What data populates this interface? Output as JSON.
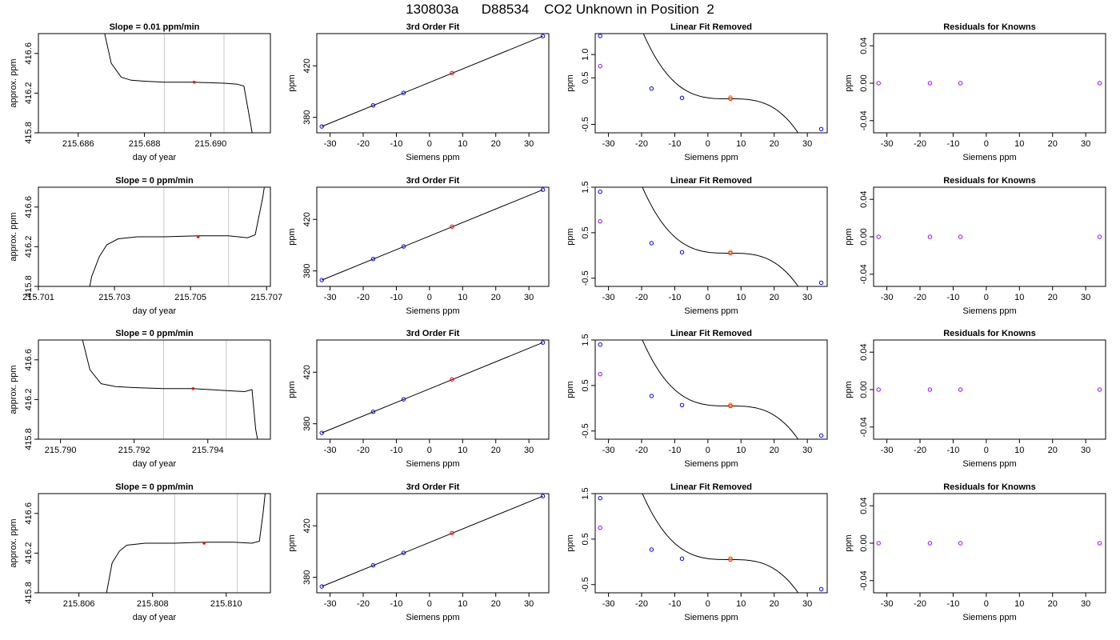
{
  "page_title": "130803a      D88534    CO2 Unknown in Position  2",
  "labels": {
    "fit_title": "3rd Order Fit",
    "linfit_title": "Linear Fit Removed",
    "resid_title": "Residuals for Knowns",
    "ts_xlabel": "day of year",
    "ts_ylabel": "approx. ppm",
    "siemens_xlabel": "Siemens ppm",
    "ppm_ylabel": "ppm"
  },
  "colors": {
    "known": "#0000ff",
    "unknown": "#ff0000",
    "orange": "#ff8c00",
    "purple": "#a000ff",
    "line": "#000000",
    "vline": "#c8c8c8"
  },
  "chart_data": [
    {
      "type": "line",
      "title": "Slope =  0.01  ppm/min",
      "xlabel": "day of year",
      "ylabel": "approx. ppm",
      "xlim": [
        215.6848,
        215.6918
      ],
      "ylim": [
        415.8,
        416.8
      ],
      "xticks": [
        215.686,
        215.688,
        215.69
      ],
      "xtick_labels": [
        "215.686",
        "215.688",
        "215.690"
      ],
      "yticks": [
        415.8,
        416.2,
        416.6
      ],
      "ytick_labels": [
        "415.8",
        "416.2",
        "416.6"
      ],
      "trace": [
        [
          215.6867,
          416.95
        ],
        [
          215.687,
          416.5
        ],
        [
          215.6873,
          416.36
        ],
        [
          215.6876,
          416.33
        ],
        [
          215.688,
          416.32
        ],
        [
          215.6886,
          416.31
        ],
        [
          215.6895,
          416.31
        ],
        [
          215.6904,
          416.3
        ],
        [
          215.6908,
          416.29
        ],
        [
          215.691,
          416.27
        ],
        [
          215.6912,
          415.9
        ],
        [
          215.6913,
          415.7
        ]
      ],
      "vlines": [
        215.6886,
        215.6904
      ],
      "marker": [
        215.6895,
        416.31
      ]
    },
    {
      "type": "scatter",
      "title": "3rd Order Fit",
      "xlabel": "Siemens ppm",
      "ylabel": "ppm",
      "xlim": [
        -34,
        36
      ],
      "ylim": [
        368,
        445
      ],
      "xticks": [
        -30,
        -20,
        -10,
        0,
        10,
        20,
        30
      ],
      "xtick_labels": [
        "-30",
        "-20",
        "-10",
        "0",
        "10",
        "20",
        "30"
      ],
      "yticks": [
        380,
        420
      ],
      "ytick_labels": [
        "380",
        "420"
      ],
      "known_points": [
        [
          -32.5,
          372.9
        ],
        [
          -17,
          389.3
        ],
        [
          -7.8,
          399.0
        ],
        [
          34.2,
          443.0
        ]
      ],
      "unknown_points": [
        [
          6.8,
          414.4
        ]
      ]
    },
    {
      "type": "scatter",
      "title": "Linear Fit Removed",
      "xlabel": "Siemens ppm",
      "ylabel": "ppm",
      "xlim": [
        -34,
        36
      ],
      "ylim": [
        -0.68,
        1.45
      ],
      "xticks": [
        -30,
        -20,
        -10,
        0,
        10,
        20,
        30
      ],
      "xtick_labels": [
        "-30",
        "-20",
        "-10",
        "0",
        "10",
        "20",
        "30"
      ],
      "yticks": [
        -0.5,
        0.5,
        1.0
      ],
      "ytick_labels": [
        "-0.5",
        "0.5",
        "1.0"
      ],
      "known_points": [
        [
          -32.5,
          1.4
        ],
        [
          -17,
          0.27
        ],
        [
          -7.8,
          0.07
        ],
        [
          34.2,
          -0.6
        ]
      ],
      "unknown_points": [
        [
          6.8,
          0.05
        ]
      ],
      "orange_points": [
        [
          6.8,
          0.08
        ]
      ],
      "purple_points": [
        [
          -32.5,
          0.75
        ]
      ],
      "curve": {
        "x0": 6.4,
        "k": 8.1e-05,
        "c": 0.05
      }
    },
    {
      "type": "scatter",
      "title": "Residuals for Knowns",
      "xlabel": "Siemens ppm",
      "ylabel": "ppm",
      "xlim": [
        -34,
        36
      ],
      "ylim": [
        -0.053,
        0.053
      ],
      "xticks": [
        -30,
        -20,
        -10,
        0,
        10,
        20,
        30
      ],
      "xtick_labels": [
        "-30",
        "-20",
        "-10",
        "0",
        "10",
        "20",
        "30"
      ],
      "yticks": [
        -0.04,
        0.0,
        0.04
      ],
      "ytick_labels": [
        "-0.04",
        "0.00",
        "0.04"
      ],
      "resid_points": [
        [
          -32.5,
          0
        ],
        [
          -17,
          0
        ],
        [
          -7.8,
          0
        ],
        [
          34.2,
          0
        ]
      ]
    },
    {
      "type": "line",
      "title": "Slope =  0  ppm/min",
      "xlabel": "day of year",
      "ylabel": "approx. ppm",
      "xlim": [
        215.701,
        215.7071
      ],
      "ylim": [
        415.8,
        416.8
      ],
      "xticks": [
        215.701,
        215.703,
        215.705,
        215.707
      ],
      "xtick_labels": [
        "215.701",
        "215.703",
        "215.705",
        "215.707"
      ],
      "yticks": [
        415.8,
        416.2,
        416.6
      ],
      "ytick_labels": [
        "415.8",
        "416.2",
        "416.6"
      ],
      "trace": [
        [
          215.7023,
          415.7
        ],
        [
          215.7024,
          415.9
        ],
        [
          215.7026,
          416.1
        ],
        [
          215.7028,
          416.22
        ],
        [
          215.7031,
          416.28
        ],
        [
          215.7036,
          416.3
        ],
        [
          215.7043,
          416.3
        ],
        [
          215.7052,
          416.31
        ],
        [
          215.706,
          416.31
        ],
        [
          215.7065,
          416.29
        ],
        [
          215.7067,
          416.32
        ],
        [
          215.7069,
          416.7
        ],
        [
          215.707,
          416.95
        ]
      ],
      "vlines": [
        215.7043,
        215.706
      ],
      "marker": [
        215.7052,
        416.3
      ]
    },
    {
      "type": "scatter",
      "title": "3rd Order Fit",
      "xlabel": "Siemens ppm",
      "ylabel": "ppm",
      "xlim": [
        -34,
        36
      ],
      "ylim": [
        368,
        445
      ],
      "xticks": [
        -30,
        -20,
        -10,
        0,
        10,
        20,
        30
      ],
      "xtick_labels": [
        "-30",
        "-20",
        "-10",
        "0",
        "10",
        "20",
        "30"
      ],
      "yticks": [
        380,
        420
      ],
      "ytick_labels": [
        "380",
        "420"
      ],
      "known_points": [
        [
          -32.5,
          372.9
        ],
        [
          -17,
          389.3
        ],
        [
          -7.8,
          399.0
        ],
        [
          34.2,
          443.0
        ]
      ],
      "unknown_points": [
        [
          6.8,
          414.4
        ]
      ]
    },
    {
      "type": "scatter",
      "title": "Linear Fit Removed",
      "xlabel": "Siemens ppm",
      "ylabel": "ppm",
      "xlim": [
        -34,
        36
      ],
      "ylim": [
        -0.68,
        1.5
      ],
      "xticks": [
        -30,
        -20,
        -10,
        0,
        10,
        20,
        30
      ],
      "xtick_labels": [
        "-30",
        "-20",
        "-10",
        "0",
        "10",
        "20",
        "30"
      ],
      "yticks": [
        -0.5,
        0.5,
        1.5
      ],
      "ytick_labels": [
        "-0.5",
        "0.5",
        "1.5"
      ],
      "known_points": [
        [
          -32.5,
          1.4
        ],
        [
          -17,
          0.27
        ],
        [
          -7.8,
          0.07
        ],
        [
          34.2,
          -0.6
        ]
      ],
      "unknown_points": [
        [
          6.8,
          0.05
        ]
      ],
      "orange_points": [
        [
          6.8,
          0.08
        ]
      ],
      "purple_points": [
        [
          -32.5,
          0.75
        ]
      ],
      "curve": {
        "x0": 6.4,
        "k": 8.1e-05,
        "c": 0.05
      }
    },
    {
      "type": "scatter",
      "title": "Residuals for Knowns",
      "xlabel": "Siemens ppm",
      "ylabel": "ppm",
      "xlim": [
        -34,
        36
      ],
      "ylim": [
        -0.053,
        0.053
      ],
      "xticks": [
        -30,
        -20,
        -10,
        0,
        10,
        20,
        30
      ],
      "xtick_labels": [
        "-30",
        "-20",
        "-10",
        "0",
        "10",
        "20",
        "30"
      ],
      "yticks": [
        -0.04,
        0.0,
        0.04
      ],
      "ytick_labels": [
        "-0.04",
        "0.00",
        "0.04"
      ],
      "resid_points": [
        [
          -32.5,
          0
        ],
        [
          -17,
          0
        ],
        [
          -7.8,
          0
        ],
        [
          34.2,
          0
        ]
      ]
    },
    {
      "type": "line",
      "title": "Slope =  0  ppm/min",
      "xlabel": "day of year",
      "ylabel": "approx. ppm",
      "xlim": [
        215.7894,
        215.7957
      ],
      "ylim": [
        415.8,
        416.8
      ],
      "xticks": [
        215.79,
        215.792,
        215.794
      ],
      "xtick_labels": [
        "215.790",
        "215.792",
        "215.794"
      ],
      "yticks": [
        415.8,
        416.2,
        416.6
      ],
      "ytick_labels": [
        "415.8",
        "416.2",
        "416.6"
      ],
      "trace": [
        [
          215.7905,
          416.95
        ],
        [
          215.7908,
          416.5
        ],
        [
          215.7911,
          416.36
        ],
        [
          215.7915,
          416.33
        ],
        [
          215.792,
          416.32
        ],
        [
          215.7928,
          416.31
        ],
        [
          215.7936,
          416.31
        ],
        [
          215.7945,
          416.29
        ],
        [
          215.795,
          416.28
        ],
        [
          215.7952,
          416.3
        ],
        [
          215.7953,
          415.9
        ],
        [
          215.7954,
          415.7
        ]
      ],
      "vlines": [
        215.7928,
        215.7945
      ],
      "marker": [
        215.7936,
        416.31
      ]
    },
    {
      "type": "scatter",
      "title": "3rd Order Fit",
      "xlabel": "Siemens ppm",
      "ylabel": "ppm",
      "xlim": [
        -34,
        36
      ],
      "ylim": [
        368,
        445
      ],
      "xticks": [
        -30,
        -20,
        -10,
        0,
        10,
        20,
        30
      ],
      "xtick_labels": [
        "-30",
        "-20",
        "-10",
        "0",
        "10",
        "20",
        "30"
      ],
      "yticks": [
        380,
        420
      ],
      "ytick_labels": [
        "380",
        "420"
      ],
      "known_points": [
        [
          -32.5,
          372.9
        ],
        [
          -17,
          389.3
        ],
        [
          -7.8,
          399.0
        ],
        [
          34.2,
          443.0
        ]
      ],
      "unknown_points": [
        [
          6.8,
          414.4
        ]
      ]
    },
    {
      "type": "scatter",
      "title": "Linear Fit Removed",
      "xlabel": "Siemens ppm",
      "ylabel": "ppm",
      "xlim": [
        -34,
        36
      ],
      "ylim": [
        -0.68,
        1.5
      ],
      "xticks": [
        -30,
        -20,
        -10,
        0,
        10,
        20,
        30
      ],
      "xtick_labels": [
        "-30",
        "-20",
        "-10",
        "0",
        "10",
        "20",
        "30"
      ],
      "yticks": [
        -0.5,
        0.5,
        1.5
      ],
      "ytick_labels": [
        "-0.5",
        "0.5",
        "1.5"
      ],
      "known_points": [
        [
          -32.5,
          1.4
        ],
        [
          -17,
          0.27
        ],
        [
          -7.8,
          0.07
        ],
        [
          34.2,
          -0.6
        ]
      ],
      "unknown_points": [
        [
          6.8,
          0.05
        ]
      ],
      "orange_points": [
        [
          6.8,
          0.08
        ]
      ],
      "purple_points": [
        [
          -32.5,
          0.75
        ]
      ],
      "curve": {
        "x0": 6.4,
        "k": 8.1e-05,
        "c": 0.05
      }
    },
    {
      "type": "scatter",
      "title": "Residuals for Knowns",
      "xlabel": "Siemens ppm",
      "ylabel": "ppm",
      "xlim": [
        -34,
        36
      ],
      "ylim": [
        -0.053,
        0.053
      ],
      "xticks": [
        -30,
        -20,
        -10,
        0,
        10,
        20,
        30
      ],
      "xtick_labels": [
        "-30",
        "-20",
        "-10",
        "0",
        "10",
        "20",
        "30"
      ],
      "yticks": [
        -0.04,
        0.0,
        0.04
      ],
      "ytick_labels": [
        "-0.04",
        "0.00",
        "0.04"
      ],
      "resid_points": [
        [
          -32.5,
          0
        ],
        [
          -17,
          0
        ],
        [
          -7.8,
          0
        ],
        [
          34.2,
          0
        ]
      ]
    },
    {
      "type": "line",
      "title": "Slope =  0  ppm/min",
      "xlabel": "day of year",
      "ylabel": "approx. ppm",
      "xlim": [
        215.8049,
        215.8112
      ],
      "ylim": [
        415.8,
        416.8
      ],
      "xticks": [
        215.806,
        215.808,
        215.81
      ],
      "xtick_labels": [
        "215.806",
        "215.808",
        "215.810"
      ],
      "yticks": [
        415.8,
        416.2,
        416.6
      ],
      "ytick_labels": [
        "415.8",
        "416.2",
        "416.6"
      ],
      "trace": [
        [
          215.8067,
          415.7
        ],
        [
          215.8068,
          415.9
        ],
        [
          215.8069,
          416.1
        ],
        [
          215.8071,
          416.22
        ],
        [
          215.8073,
          416.28
        ],
        [
          215.8078,
          416.3
        ],
        [
          215.8086,
          416.3
        ],
        [
          215.8094,
          416.31
        ],
        [
          215.8102,
          416.31
        ],
        [
          215.8107,
          416.3
        ],
        [
          215.8109,
          416.32
        ],
        [
          215.811,
          416.6
        ],
        [
          215.8111,
          416.95
        ]
      ],
      "vlines": [
        215.8086,
        215.8103
      ],
      "marker": [
        215.8094,
        416.3
      ]
    },
    {
      "type": "scatter",
      "title": "3rd Order Fit",
      "xlabel": "Siemens ppm",
      "ylabel": "ppm",
      "xlim": [
        -34,
        36
      ],
      "ylim": [
        368,
        445
      ],
      "xticks": [
        -30,
        -20,
        -10,
        0,
        10,
        20,
        30
      ],
      "xtick_labels": [
        "-30",
        "-20",
        "-10",
        "0",
        "10",
        "20",
        "30"
      ],
      "yticks": [
        380,
        420
      ],
      "ytick_labels": [
        "380",
        "420"
      ],
      "known_points": [
        [
          -32.5,
          372.9
        ],
        [
          -17,
          389.3
        ],
        [
          -7.8,
          399.0
        ],
        [
          34.2,
          443.0
        ]
      ],
      "unknown_points": [
        [
          6.8,
          414.4
        ]
      ]
    },
    {
      "type": "scatter",
      "title": "Linear Fit Removed",
      "xlabel": "Siemens ppm",
      "ylabel": "ppm",
      "xlim": [
        -34,
        36
      ],
      "ylim": [
        -0.68,
        1.5
      ],
      "xticks": [
        -30,
        -20,
        -10,
        0,
        10,
        20,
        30
      ],
      "xtick_labels": [
        "-30",
        "-20",
        "-10",
        "0",
        "10",
        "20",
        "30"
      ],
      "yticks": [
        -0.5,
        0.5,
        1.5
      ],
      "ytick_labels": [
        "-0.5",
        "0.5",
        "1.5"
      ],
      "known_points": [
        [
          -32.5,
          1.4
        ],
        [
          -17,
          0.27
        ],
        [
          -7.8,
          0.07
        ],
        [
          34.2,
          -0.6
        ]
      ],
      "unknown_points": [
        [
          6.8,
          0.05
        ]
      ],
      "orange_points": [
        [
          6.8,
          0.08
        ]
      ],
      "purple_points": [
        [
          -32.5,
          0.75
        ]
      ],
      "curve": {
        "x0": 6.4,
        "k": 8.1e-05,
        "c": 0.05
      }
    },
    {
      "type": "scatter",
      "title": "Residuals for Knowns",
      "xlabel": "Siemens ppm",
      "ylabel": "ppm",
      "xlim": [
        -34,
        36
      ],
      "ylim": [
        -0.053,
        0.053
      ],
      "xticks": [
        -30,
        -20,
        -10,
        0,
        10,
        20,
        30
      ],
      "xtick_labels": [
        "-30",
        "-20",
        "-10",
        "0",
        "10",
        "20",
        "30"
      ],
      "yticks": [
        -0.04,
        0.0,
        0.04
      ],
      "ytick_labels": [
        "-0.04",
        "0.00",
        "0.04"
      ],
      "resid_points": [
        [
          -32.5,
          0
        ],
        [
          -17,
          0
        ],
        [
          -7.8,
          0
        ],
        [
          34.2,
          0
        ]
      ]
    }
  ]
}
